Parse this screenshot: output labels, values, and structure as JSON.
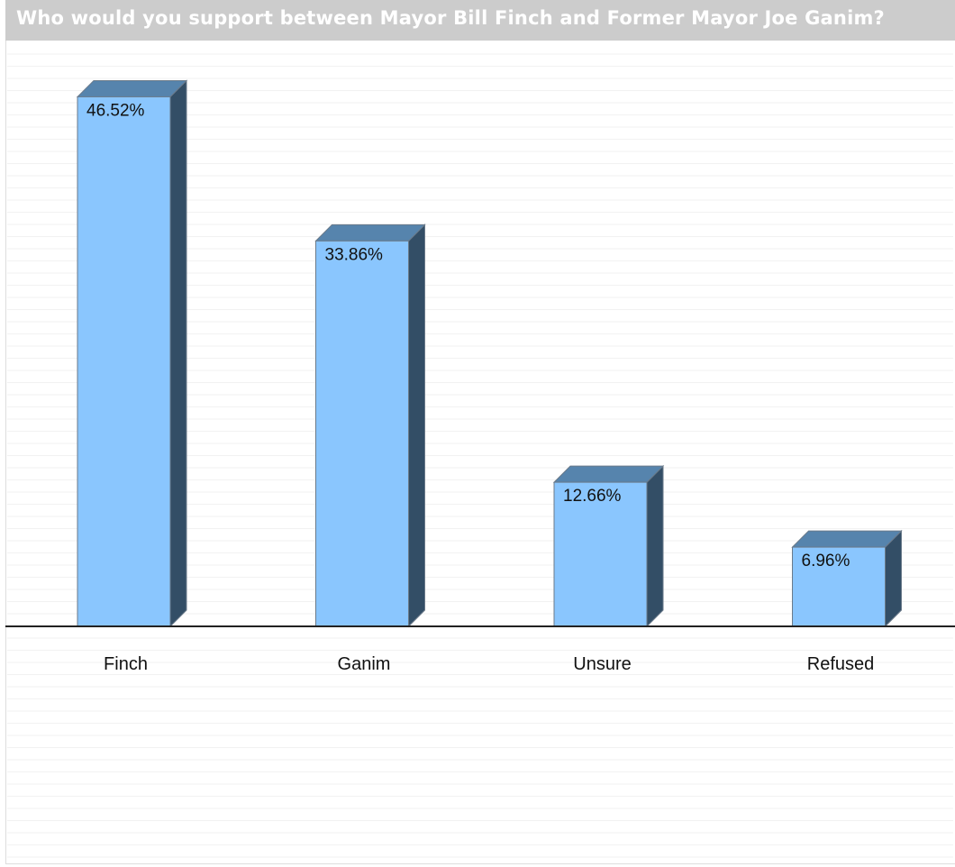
{
  "colors": {
    "title_bar": "#cccccc",
    "title_text": "#ffffff",
    "bar_front": "#8ac6fe",
    "bar_top": "#5684ad",
    "bar_side": "#334e66",
    "bar_edge": "#6a7a8a",
    "axis": "#222222",
    "gridline": "#f2f2f2"
  },
  "chart_data": {
    "type": "bar",
    "title": "Who would you support between Mayor Bill Finch and Former Mayor Joe Ganim?",
    "categories": [
      "Finch",
      "Ganim",
      "Unsure",
      "Refused"
    ],
    "values": [
      46.52,
      33.86,
      12.66,
      6.96
    ],
    "data_labels": [
      "46.52%",
      "33.86%",
      "12.66%",
      "6.96%"
    ],
    "xlabel": "",
    "ylabel": "",
    "style": "3d",
    "grid": true
  }
}
